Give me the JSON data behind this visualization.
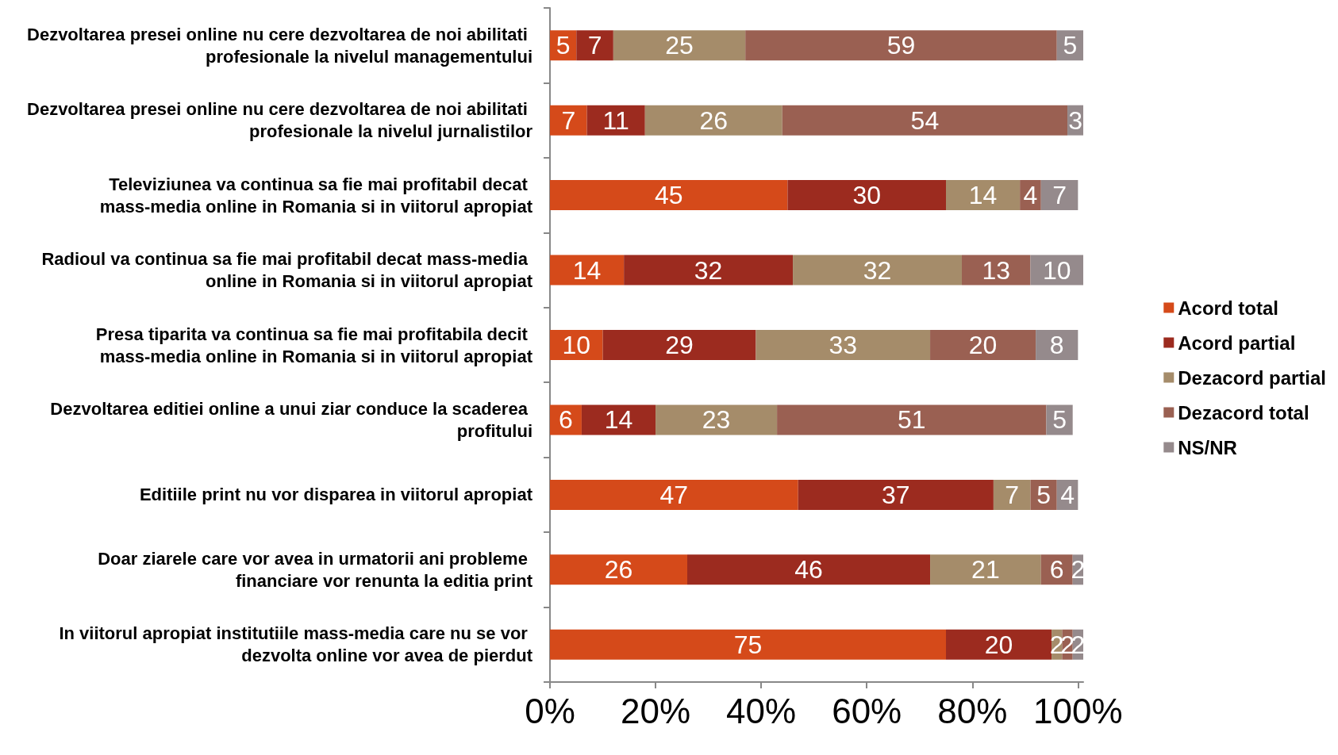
{
  "chart_data": {
    "type": "bar",
    "orientation": "horizontal",
    "stacked": true,
    "data_labels": true,
    "grid": false,
    "legend": "right",
    "categories": [
      "Dezvoltarea presei online nu cere dezvoltarea de noi abilitati profesionale la nivelul managementului",
      "Dezvoltarea presei online nu cere dezvoltarea de noi abilitati profesionale la nivelul jurnalistilor",
      "Televiziunea va continua sa fie mai profitabil decat mass-media online in Romania si in viitorul apropiat",
      "Radioul va continua sa fie mai profitabil decat mass-media online in Romania si in viitorul apropiat",
      "Presa tiparita va continua sa fie mai profitabila decit mass-media online in Romania si in viitorul apropiat",
      "Dezvoltarea editiei online a unui ziar conduce la scaderea profitului",
      "Editiile print nu vor disparea in viitorul apropiat",
      "Doar ziarele care vor avea in urmatorii ani probleme financiare vor renunta la editia print",
      "In viitorul apropiat institutiile mass-media care nu se vor dezvolta online vor avea de pierdut"
    ],
    "series": [
      {
        "name": "Acord total",
        "color": "#d54a1a",
        "values": [
          5,
          7,
          45,
          14,
          10,
          6,
          47,
          26,
          75
        ]
      },
      {
        "name": "Acord partial",
        "color": "#9c2b1f",
        "values": [
          7,
          11,
          30,
          32,
          29,
          14,
          37,
          46,
          20
        ]
      },
      {
        "name": "Dezacord partial",
        "color": "#a58c6a",
        "values": [
          25,
          26,
          14,
          32,
          33,
          23,
          7,
          21,
          2
        ]
      },
      {
        "name": "Dezacord total",
        "color": "#9a6052",
        "values": [
          59,
          54,
          4,
          13,
          20,
          51,
          5,
          6,
          2
        ]
      },
      {
        "name": "NS/NR",
        "color": "#958a8c",
        "values": [
          5,
          3,
          7,
          10,
          8,
          5,
          4,
          2,
          2
        ]
      }
    ],
    "xlim": [
      0,
      101
    ],
    "xticks": [
      {
        "value": 0,
        "label": "0%"
      },
      {
        "value": 20,
        "label": "20%"
      },
      {
        "value": 40,
        "label": "40%"
      },
      {
        "value": 60,
        "label": "60%"
      },
      {
        "value": 80,
        "label": "80%"
      },
      {
        "value": 100,
        "label": "100%"
      }
    ]
  }
}
